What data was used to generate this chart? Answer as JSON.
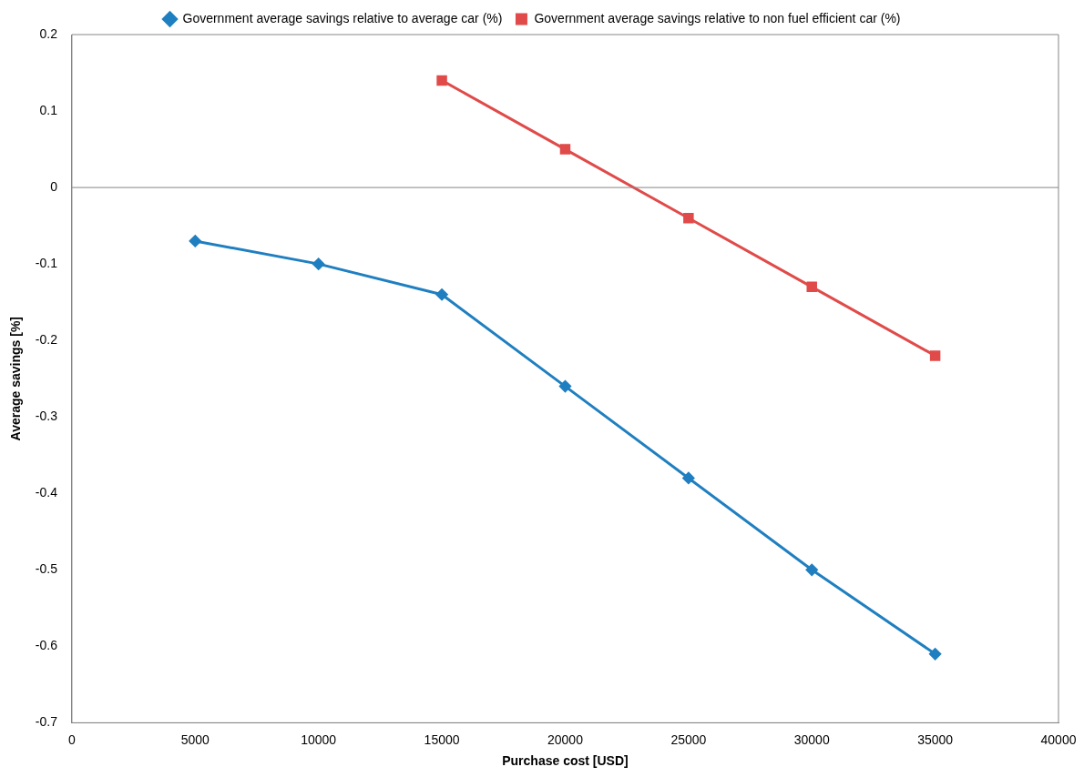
{
  "chart_data": {
    "type": "line",
    "xlabel": "Purchase cost [USD]",
    "ylabel": "Average savings [%]",
    "x": [
      5000,
      10000,
      15000,
      20000,
      25000,
      30000,
      35000
    ],
    "series": [
      {
        "name": "Government average savings relative to average car (%)",
        "color": "#1f7fc0",
        "marker": "diamond",
        "values": [
          -0.07,
          -0.1,
          -0.14,
          -0.26,
          -0.38,
          -0.5,
          -0.61
        ]
      },
      {
        "name": "Government average savings relative to non fuel efficient car (%)",
        "color": "#e04b4a",
        "marker": "square",
        "values": [
          null,
          null,
          0.14,
          0.05,
          -0.04,
          -0.13,
          -0.22
        ]
      }
    ],
    "xlim": [
      0,
      40000
    ],
    "xticks": [
      0,
      5000,
      10000,
      15000,
      20000,
      25000,
      30000,
      35000,
      40000
    ],
    "ylim": [
      -0.7,
      0.2
    ],
    "yticks": [
      -0.7,
      -0.6,
      -0.5,
      -0.4,
      -0.3,
      -0.2,
      -0.1,
      0,
      0.1,
      0.2
    ],
    "ref_lines": [
      {
        "axis": "y",
        "value": 0,
        "color": "#868686"
      }
    ],
    "grid": false,
    "legend": "top",
    "line_style": "solid"
  }
}
